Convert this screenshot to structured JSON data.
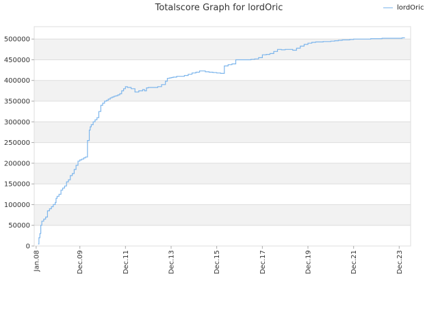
{
  "chart_data": {
    "type": "line",
    "title": "Totalscore Graph for lordOric",
    "xlabel": "",
    "ylabel": "",
    "ylim": [
      0,
      530000
    ],
    "y_ticks": [
      0,
      50000,
      100000,
      150000,
      200000,
      250000,
      300000,
      350000,
      400000,
      450000,
      500000
    ],
    "y_tick_labels": [
      "0",
      "50000",
      "100000",
      "150000",
      "200000",
      "250000",
      "300000",
      "350000",
      "400000",
      "450000",
      "500000"
    ],
    "x_range": [
      "2007-12-01",
      "2024-06-01"
    ],
    "x_ticks": [
      "2008-01-01",
      "2009-12-01",
      "2011-12-01",
      "2013-12-01",
      "2015-12-01",
      "2017-12-01",
      "2019-12-01",
      "2021-12-01",
      "2023-12-01"
    ],
    "x_tick_labels": [
      "Jan.08",
      "Dec.09",
      "Dec.11",
      "Dec.13",
      "Dec.15",
      "Dec.17",
      "Dec.19",
      "Dec.21",
      "Dec.23"
    ],
    "grid": true,
    "legend_position": "top-right",
    "colors": {
      "series": "#7cb5ec",
      "band": "#f2f2f2",
      "grid": "#dddddd"
    },
    "series": [
      {
        "name": "lordOric",
        "x": [
          "2008-02-01",
          "2008-02-15",
          "2008-03-01",
          "2008-03-15",
          "2008-04-01",
          "2008-05-01",
          "2008-06-01",
          "2008-07-01",
          "2008-08-01",
          "2008-09-01",
          "2008-10-01",
          "2008-11-01",
          "2008-11-15",
          "2008-12-01",
          "2009-01-01",
          "2009-02-01",
          "2009-03-01",
          "2009-04-01",
          "2009-05-01",
          "2009-06-01",
          "2009-07-01",
          "2009-08-01",
          "2009-09-01",
          "2009-10-01",
          "2009-11-01",
          "2009-12-01",
          "2010-01-01",
          "2010-02-01",
          "2010-03-01",
          "2010-04-01",
          "2010-05-01",
          "2010-05-15",
          "2010-06-01",
          "2010-07-01",
          "2010-08-01",
          "2010-09-01",
          "2010-10-01",
          "2010-11-01",
          "2010-12-01",
          "2011-01-01",
          "2011-02-01",
          "2011-03-01",
          "2011-04-01",
          "2011-05-01",
          "2011-06-01",
          "2011-07-01",
          "2011-08-01",
          "2011-09-01",
          "2011-10-01",
          "2011-11-01",
          "2011-12-01",
          "2012-01-01",
          "2012-03-01",
          "2012-05-01",
          "2012-07-01",
          "2012-09-01",
          "2012-10-01",
          "2012-11-01",
          "2012-12-01",
          "2013-01-01",
          "2013-03-01",
          "2013-05-01",
          "2013-07-01",
          "2013-09-01",
          "2013-10-01",
          "2013-11-01",
          "2013-12-01",
          "2014-01-01",
          "2014-02-01",
          "2014-03-01",
          "2014-05-01",
          "2014-07-01",
          "2014-09-01",
          "2014-11-01",
          "2015-01-01",
          "2015-03-01",
          "2015-06-01",
          "2015-08-01",
          "2015-10-01",
          "2015-12-01",
          "2016-02-01",
          "2016-04-01",
          "2016-06-01",
          "2016-08-01",
          "2016-10-01",
          "2016-12-01",
          "2017-02-01",
          "2017-04-01",
          "2017-06-01",
          "2017-08-01",
          "2017-10-01",
          "2017-12-01",
          "2018-02-01",
          "2018-04-01",
          "2018-06-01",
          "2018-08-01",
          "2018-10-01",
          "2018-12-01",
          "2019-02-01",
          "2019-04-01",
          "2019-06-01",
          "2019-08-01",
          "2019-10-01",
          "2019-12-01",
          "2020-02-01",
          "2020-04-01",
          "2020-06-01",
          "2020-08-01",
          "2020-10-01",
          "2020-12-01",
          "2021-02-01",
          "2021-04-01",
          "2021-06-01",
          "2021-08-01",
          "2021-10-01",
          "2021-12-01",
          "2022-03-01",
          "2022-06-01",
          "2022-09-01",
          "2022-12-01",
          "2023-03-01",
          "2023-06-01",
          "2023-09-01",
          "2023-12-01",
          "2024-01-15",
          "2024-03-01"
        ],
        "y": [
          5000,
          20000,
          30000,
          50000,
          60000,
          65000,
          70000,
          85000,
          90000,
          95000,
          100000,
          105000,
          115000,
          120000,
          125000,
          135000,
          140000,
          145000,
          155000,
          160000,
          170000,
          175000,
          185000,
          195000,
          205000,
          208000,
          210000,
          213000,
          215000,
          255000,
          280000,
          288000,
          293000,
          300000,
          305000,
          310000,
          325000,
          340000,
          345000,
          350000,
          352000,
          355000,
          358000,
          360000,
          362000,
          363000,
          365000,
          368000,
          375000,
          380000,
          385000,
          383000,
          380000,
          372000,
          375000,
          378000,
          375000,
          382000,
          383000,
          383000,
          383000,
          385000,
          390000,
          398000,
          405000,
          406000,
          407000,
          408000,
          408000,
          410000,
          410000,
          412000,
          415000,
          418000,
          420000,
          423000,
          421000,
          420000,
          419000,
          418000,
          417000,
          435000,
          438000,
          440000,
          450000,
          450000,
          450000,
          450000,
          451000,
          452000,
          455000,
          462000,
          463000,
          465000,
          470000,
          475000,
          474000,
          475000,
          475000,
          473000,
          478000,
          483000,
          487000,
          490000,
          492000,
          493000,
          493000,
          494000,
          494000,
          495000,
          496000,
          497000,
          498000,
          498000,
          499000,
          500000,
          500000,
          500000,
          501000,
          501000,
          502000,
          502000,
          502000,
          502000,
          503000,
          503000
        ]
      }
    ]
  }
}
